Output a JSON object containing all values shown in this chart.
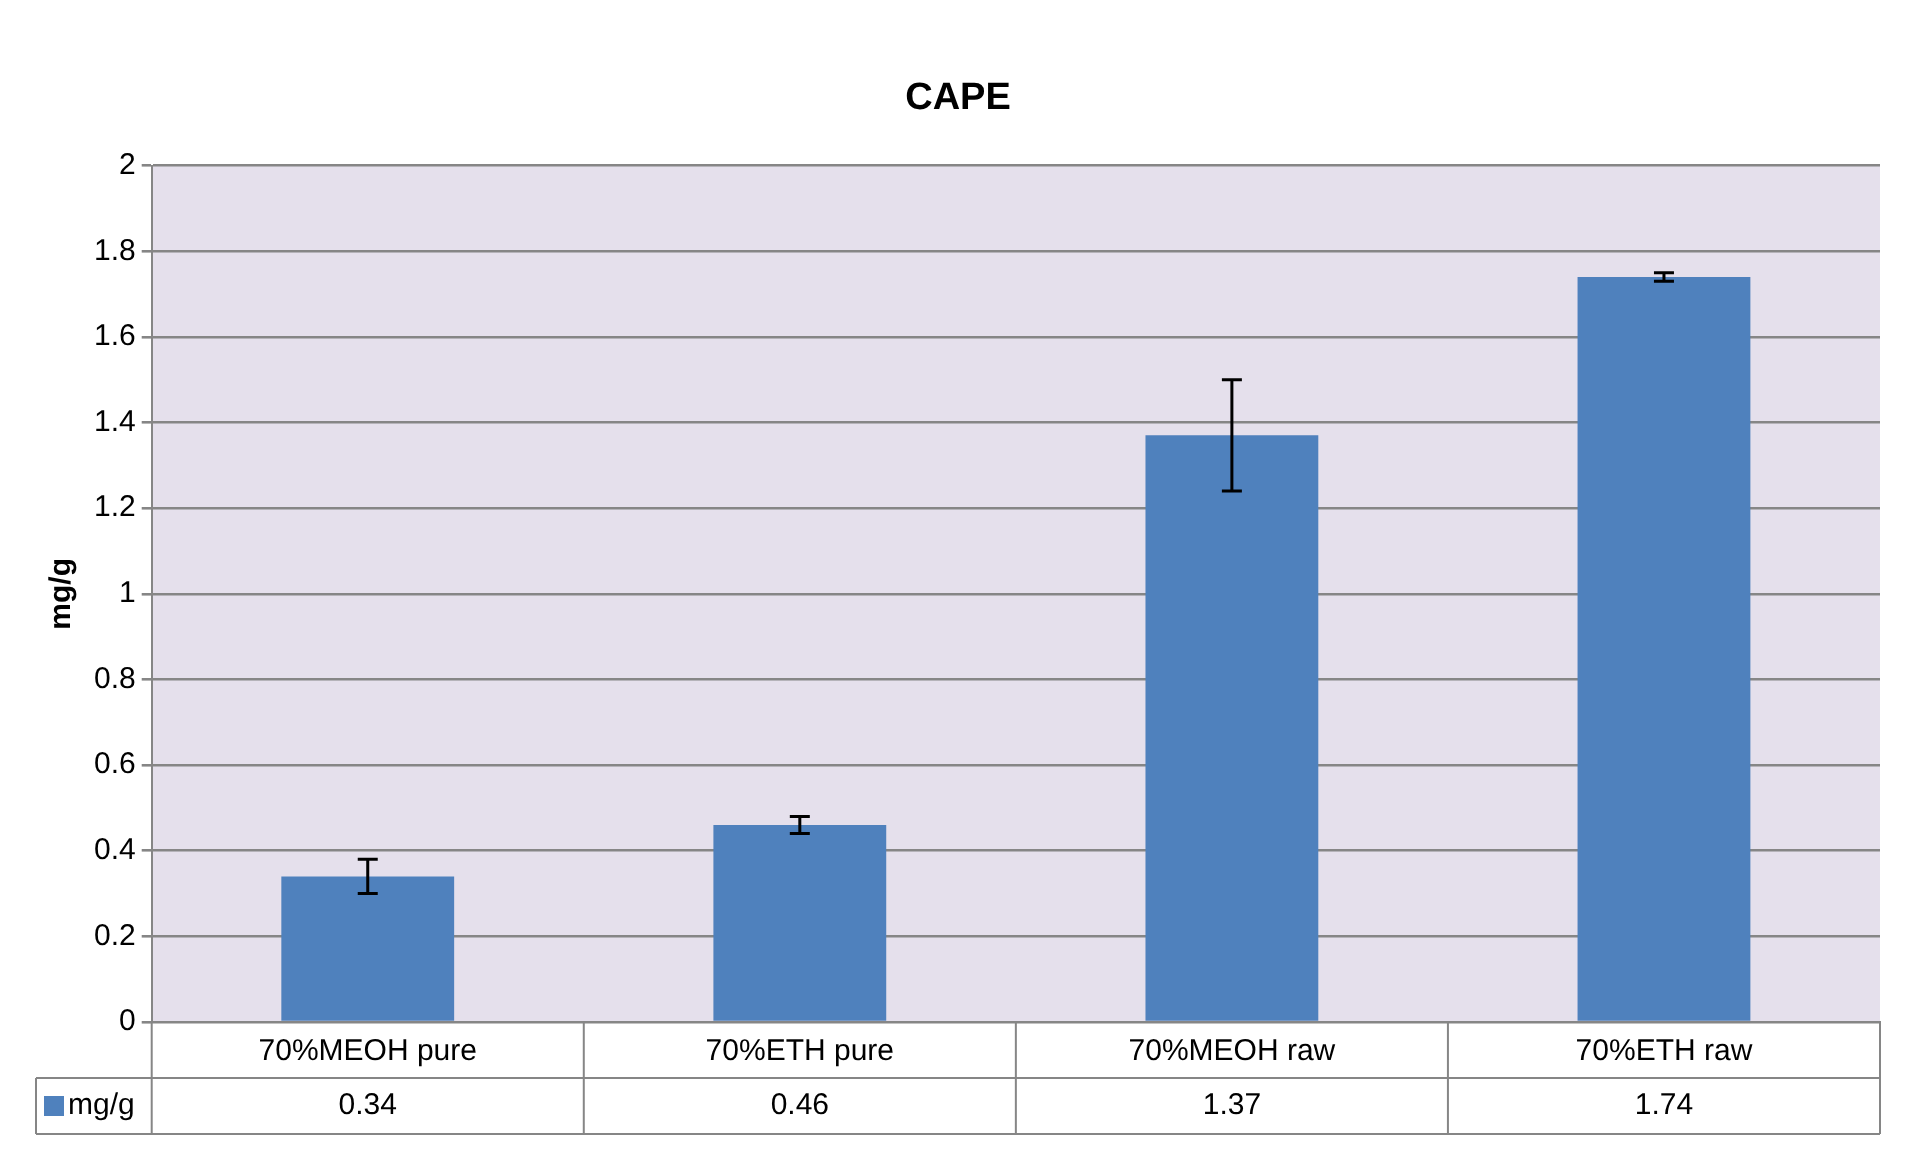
{
  "chart_data": {
    "type": "bar",
    "title": "CAPE",
    "ylabel": "mg/g",
    "categories": [
      "70%MEOH pure",
      "70%ETH pure",
      "70%MEOH raw",
      "70%ETH raw"
    ],
    "series": [
      {
        "name": "mg/g",
        "color": "#4f81bd",
        "values": [
          0.34,
          0.46,
          1.37,
          1.74
        ],
        "errors": [
          0.04,
          0.02,
          0.13,
          0.01
        ]
      }
    ],
    "ylim": [
      0,
      2
    ],
    "yticks": [
      0,
      0.2,
      0.4,
      0.6,
      0.8,
      1,
      1.2,
      1.4,
      1.6,
      1.8,
      2
    ],
    "grid": "y",
    "legend": "bottom",
    "data_labels": true
  }
}
